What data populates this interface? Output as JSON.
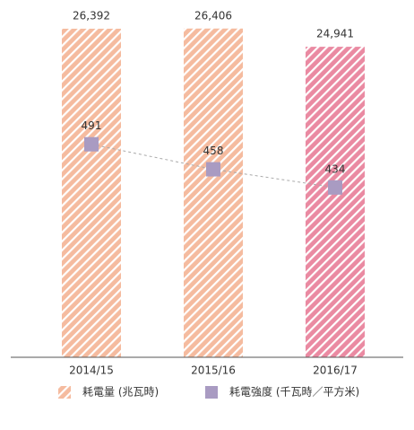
{
  "chart_data": {
    "type": "bar_line",
    "categories": [
      "2014/15",
      "2015/16",
      "2016/17"
    ],
    "series": [
      {
        "name": "耗電量 (兆瓦時)",
        "type": "bar",
        "colors": [
          "#f5bb9f",
          "#f5bb9f",
          "#ea8aa2"
        ],
        "color": "#f5bb9f",
        "values": [
          26392,
          26406,
          24941
        ],
        "value_labels": [
          "26,392",
          "26,406",
          "24,941"
        ]
      },
      {
        "name": "耗電強度 (千瓦時／平方米)",
        "type": "line",
        "axis": "y2",
        "color": "#a99bc2",
        "line_color": "#aaaaaa",
        "values": [
          491,
          458,
          434
        ]
      }
    ],
    "ylim": [
      0,
      27400
    ],
    "y2lim": [
      210,
      660
    ]
  }
}
